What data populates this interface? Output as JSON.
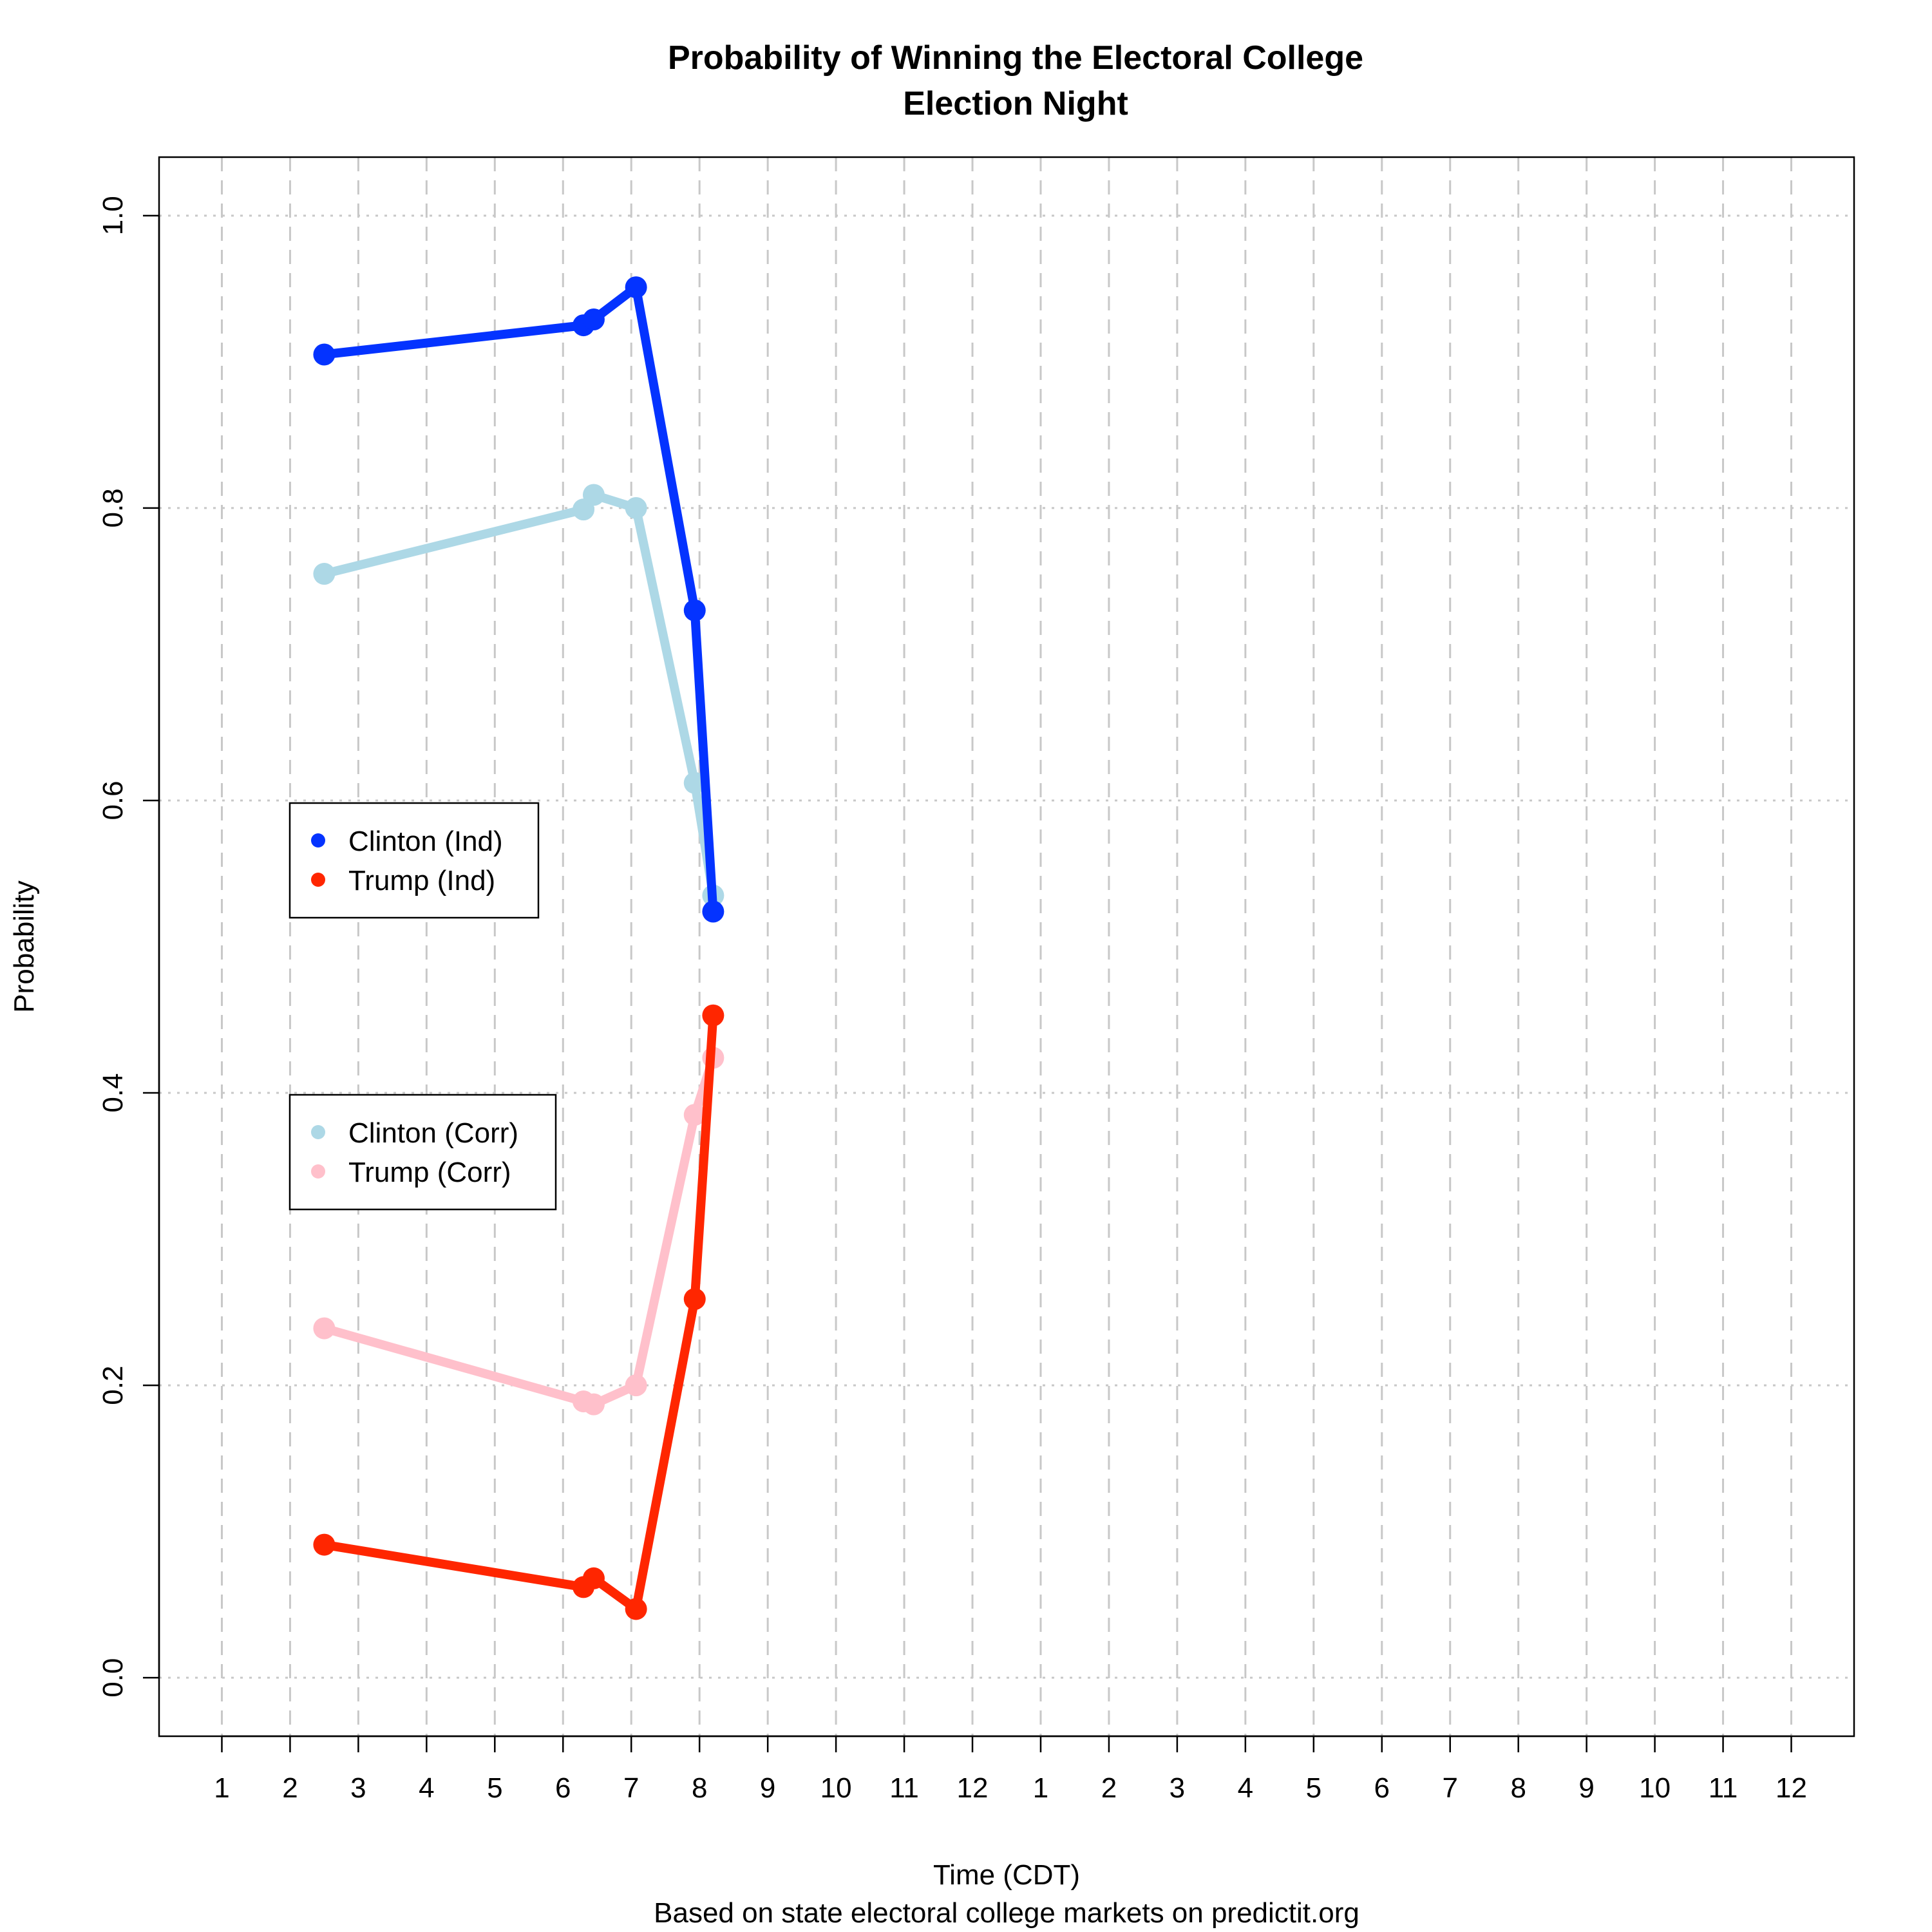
{
  "chart_data": {
    "type": "line",
    "title": "Probability of Winning the Electoral College",
    "subtitle": "Election Night",
    "xlabel": "Time (CDT)",
    "caption": "Based on state electoral college markets on predictit.org",
    "ylabel": "Probability",
    "x_tick_labels": [
      "1",
      "2",
      "3",
      "4",
      "5",
      "6",
      "7",
      "8",
      "9",
      "10",
      "11",
      "12",
      "1",
      "2",
      "3",
      "4",
      "5",
      "6",
      "7",
      "8",
      "9",
      "10",
      "11",
      "12"
    ],
    "xlim": [
      0.08,
      24.92
    ],
    "ylim": [
      -0.04,
      1.04
    ],
    "y_ticks": [
      0.0,
      0.2,
      0.4,
      0.6,
      0.8,
      1.0
    ],
    "y_tick_labels": [
      "0.0",
      "0.2",
      "0.4",
      "0.6",
      "0.8",
      "1.0"
    ],
    "grid": true,
    "series": [
      {
        "name": "Clinton (Corr)",
        "color": "#add8e6",
        "x": [
          2.5,
          6.3,
          6.45,
          7.07,
          7.93,
          8.2
        ],
        "y": [
          0.755,
          0.799,
          0.809,
          0.8,
          0.612,
          0.535
        ]
      },
      {
        "name": "Trump (Corr)",
        "color": "#ffc0cb",
        "x": [
          2.5,
          6.3,
          6.45,
          7.07,
          7.93,
          8.2
        ],
        "y": [
          0.239,
          0.189,
          0.187,
          0.2,
          0.385,
          0.424
        ]
      },
      {
        "name": "Clinton (Ind)",
        "color": "#0433ff",
        "x": [
          2.5,
          6.3,
          6.45,
          7.07,
          7.93,
          8.2
        ],
        "y": [
          0.905,
          0.925,
          0.929,
          0.951,
          0.73,
          0.524
        ]
      },
      {
        "name": "Trump (Ind)",
        "color": "#ff2600",
        "x": [
          2.5,
          6.3,
          6.45,
          7.07,
          7.93,
          8.2
        ],
        "y": [
          0.091,
          0.062,
          0.068,
          0.047,
          0.259,
          0.453
        ]
      }
    ],
    "legends": [
      {
        "entries": [
          "Clinton (Ind)",
          "Trump (Ind)"
        ],
        "colors": [
          "#0433ff",
          "#ff2600"
        ]
      },
      {
        "entries": [
          "Clinton (Corr)",
          "Trump (Corr)"
        ],
        "colors": [
          "#add8e6",
          "#ffc0cb"
        ]
      }
    ]
  }
}
